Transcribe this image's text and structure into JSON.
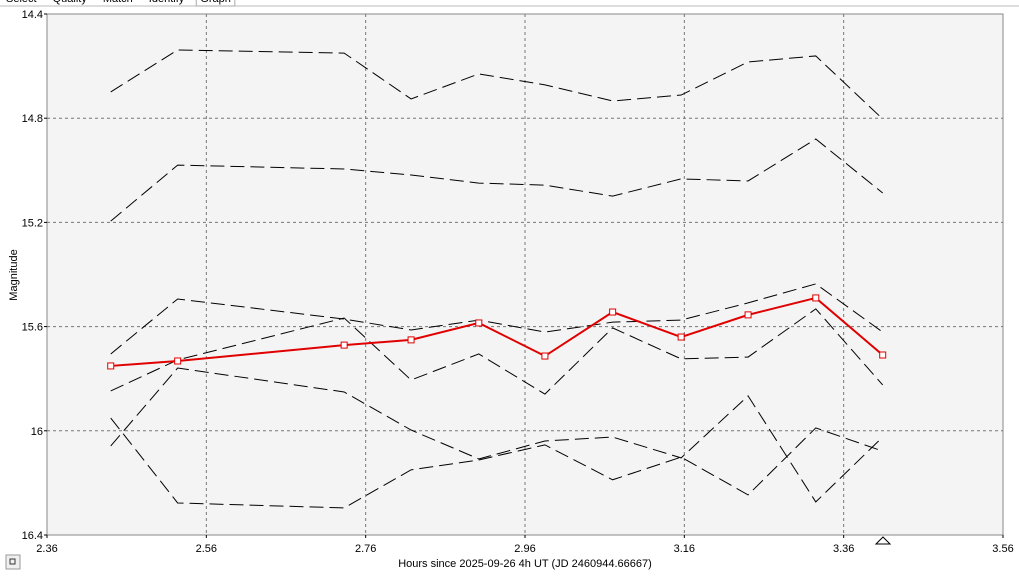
{
  "tabs": [
    "Select",
    "Quality",
    "Match",
    "Identify",
    "Graph"
  ],
  "chart_data": {
    "type": "line",
    "xlabel": "Hours since 2025-09-26 4h UT (JD 2460944.66667)",
    "ylabel": "Magnitude",
    "x": [
      2.44,
      2.524,
      2.733,
      2.817,
      2.902,
      2.985,
      3.07,
      3.156,
      3.24,
      3.325,
      3.409
    ],
    "series": [
      {
        "color": "#e00000",
        "values": [
          15.751,
          15.732,
          15.671,
          15.651,
          15.586,
          15.713,
          15.544,
          15.64,
          15.555,
          15.49,
          15.709
        ]
      },
      {
        "color": "#000000",
        "values": [
          14.699,
          14.538,
          14.55,
          14.726,
          14.63,
          14.672,
          14.734,
          14.711,
          14.584,
          14.561,
          14.803
        ]
      },
      {
        "color": "#000000",
        "values": [
          15.195,
          14.98,
          14.995,
          15.018,
          15.049,
          15.057,
          15.099,
          15.033,
          15.041,
          14.88,
          15.087
        ]
      },
      {
        "color": "#000000",
        "values": [
          15.705,
          15.494,
          15.571,
          15.613,
          15.575,
          15.621,
          15.583,
          15.575,
          15.509,
          15.436,
          15.621
        ]
      },
      {
        "color": "#000000",
        "values": [
          15.847,
          15.728,
          15.567,
          15.805,
          15.705,
          15.859,
          15.605,
          15.724,
          15.717,
          15.532,
          15.824
        ]
      },
      {
        "color": "#000000",
        "values": [
          15.951,
          16.277,
          16.296,
          16.15,
          16.112,
          16.054,
          16.188,
          16.101,
          16.246,
          15.989,
          16.078
        ]
      },
      {
        "color": "#000000",
        "values": [
          16.058,
          15.759,
          15.851,
          15.997,
          16.108,
          16.039,
          16.024,
          16.104,
          15.866,
          16.273,
          16.024
        ]
      }
    ],
    "xlim": [
      2.36,
      3.56
    ],
    "xticks": [
      2.36,
      2.56,
      2.76,
      2.96,
      3.16,
      3.36,
      3.56
    ],
    "ylim": [
      16.4,
      14.4
    ],
    "yticks": [
      14.4,
      14.8,
      15.2,
      15.6,
      16,
      16.4
    ],
    "grid": true
  }
}
